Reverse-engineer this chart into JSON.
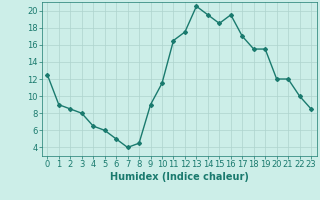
{
  "x": [
    0,
    1,
    2,
    3,
    4,
    5,
    6,
    7,
    8,
    9,
    10,
    11,
    12,
    13,
    14,
    15,
    16,
    17,
    18,
    19,
    20,
    21,
    22,
    23
  ],
  "y": [
    12.5,
    9.0,
    8.5,
    8.0,
    6.5,
    6.0,
    5.0,
    4.0,
    4.5,
    9.0,
    11.5,
    16.5,
    17.5,
    20.5,
    19.5,
    18.5,
    19.5,
    17.0,
    15.5,
    15.5,
    12.0,
    12.0,
    10.0,
    8.5
  ],
  "line_color": "#1a7a6e",
  "marker": "D",
  "marker_size": 2,
  "bg_color": "#cceee8",
  "grid_color": "#aed4ce",
  "xlabel": "Humidex (Indice chaleur)",
  "xlabel_fontsize": 7,
  "ylim": [
    3,
    21
  ],
  "xlim": [
    -0.5,
    23.5
  ],
  "yticks": [
    4,
    6,
    8,
    10,
    12,
    14,
    16,
    18,
    20
  ],
  "xticks": [
    0,
    1,
    2,
    3,
    4,
    5,
    6,
    7,
    8,
    9,
    10,
    11,
    12,
    13,
    14,
    15,
    16,
    17,
    18,
    19,
    20,
    21,
    22,
    23
  ],
  "tick_fontsize": 6,
  "line_width": 1.0
}
